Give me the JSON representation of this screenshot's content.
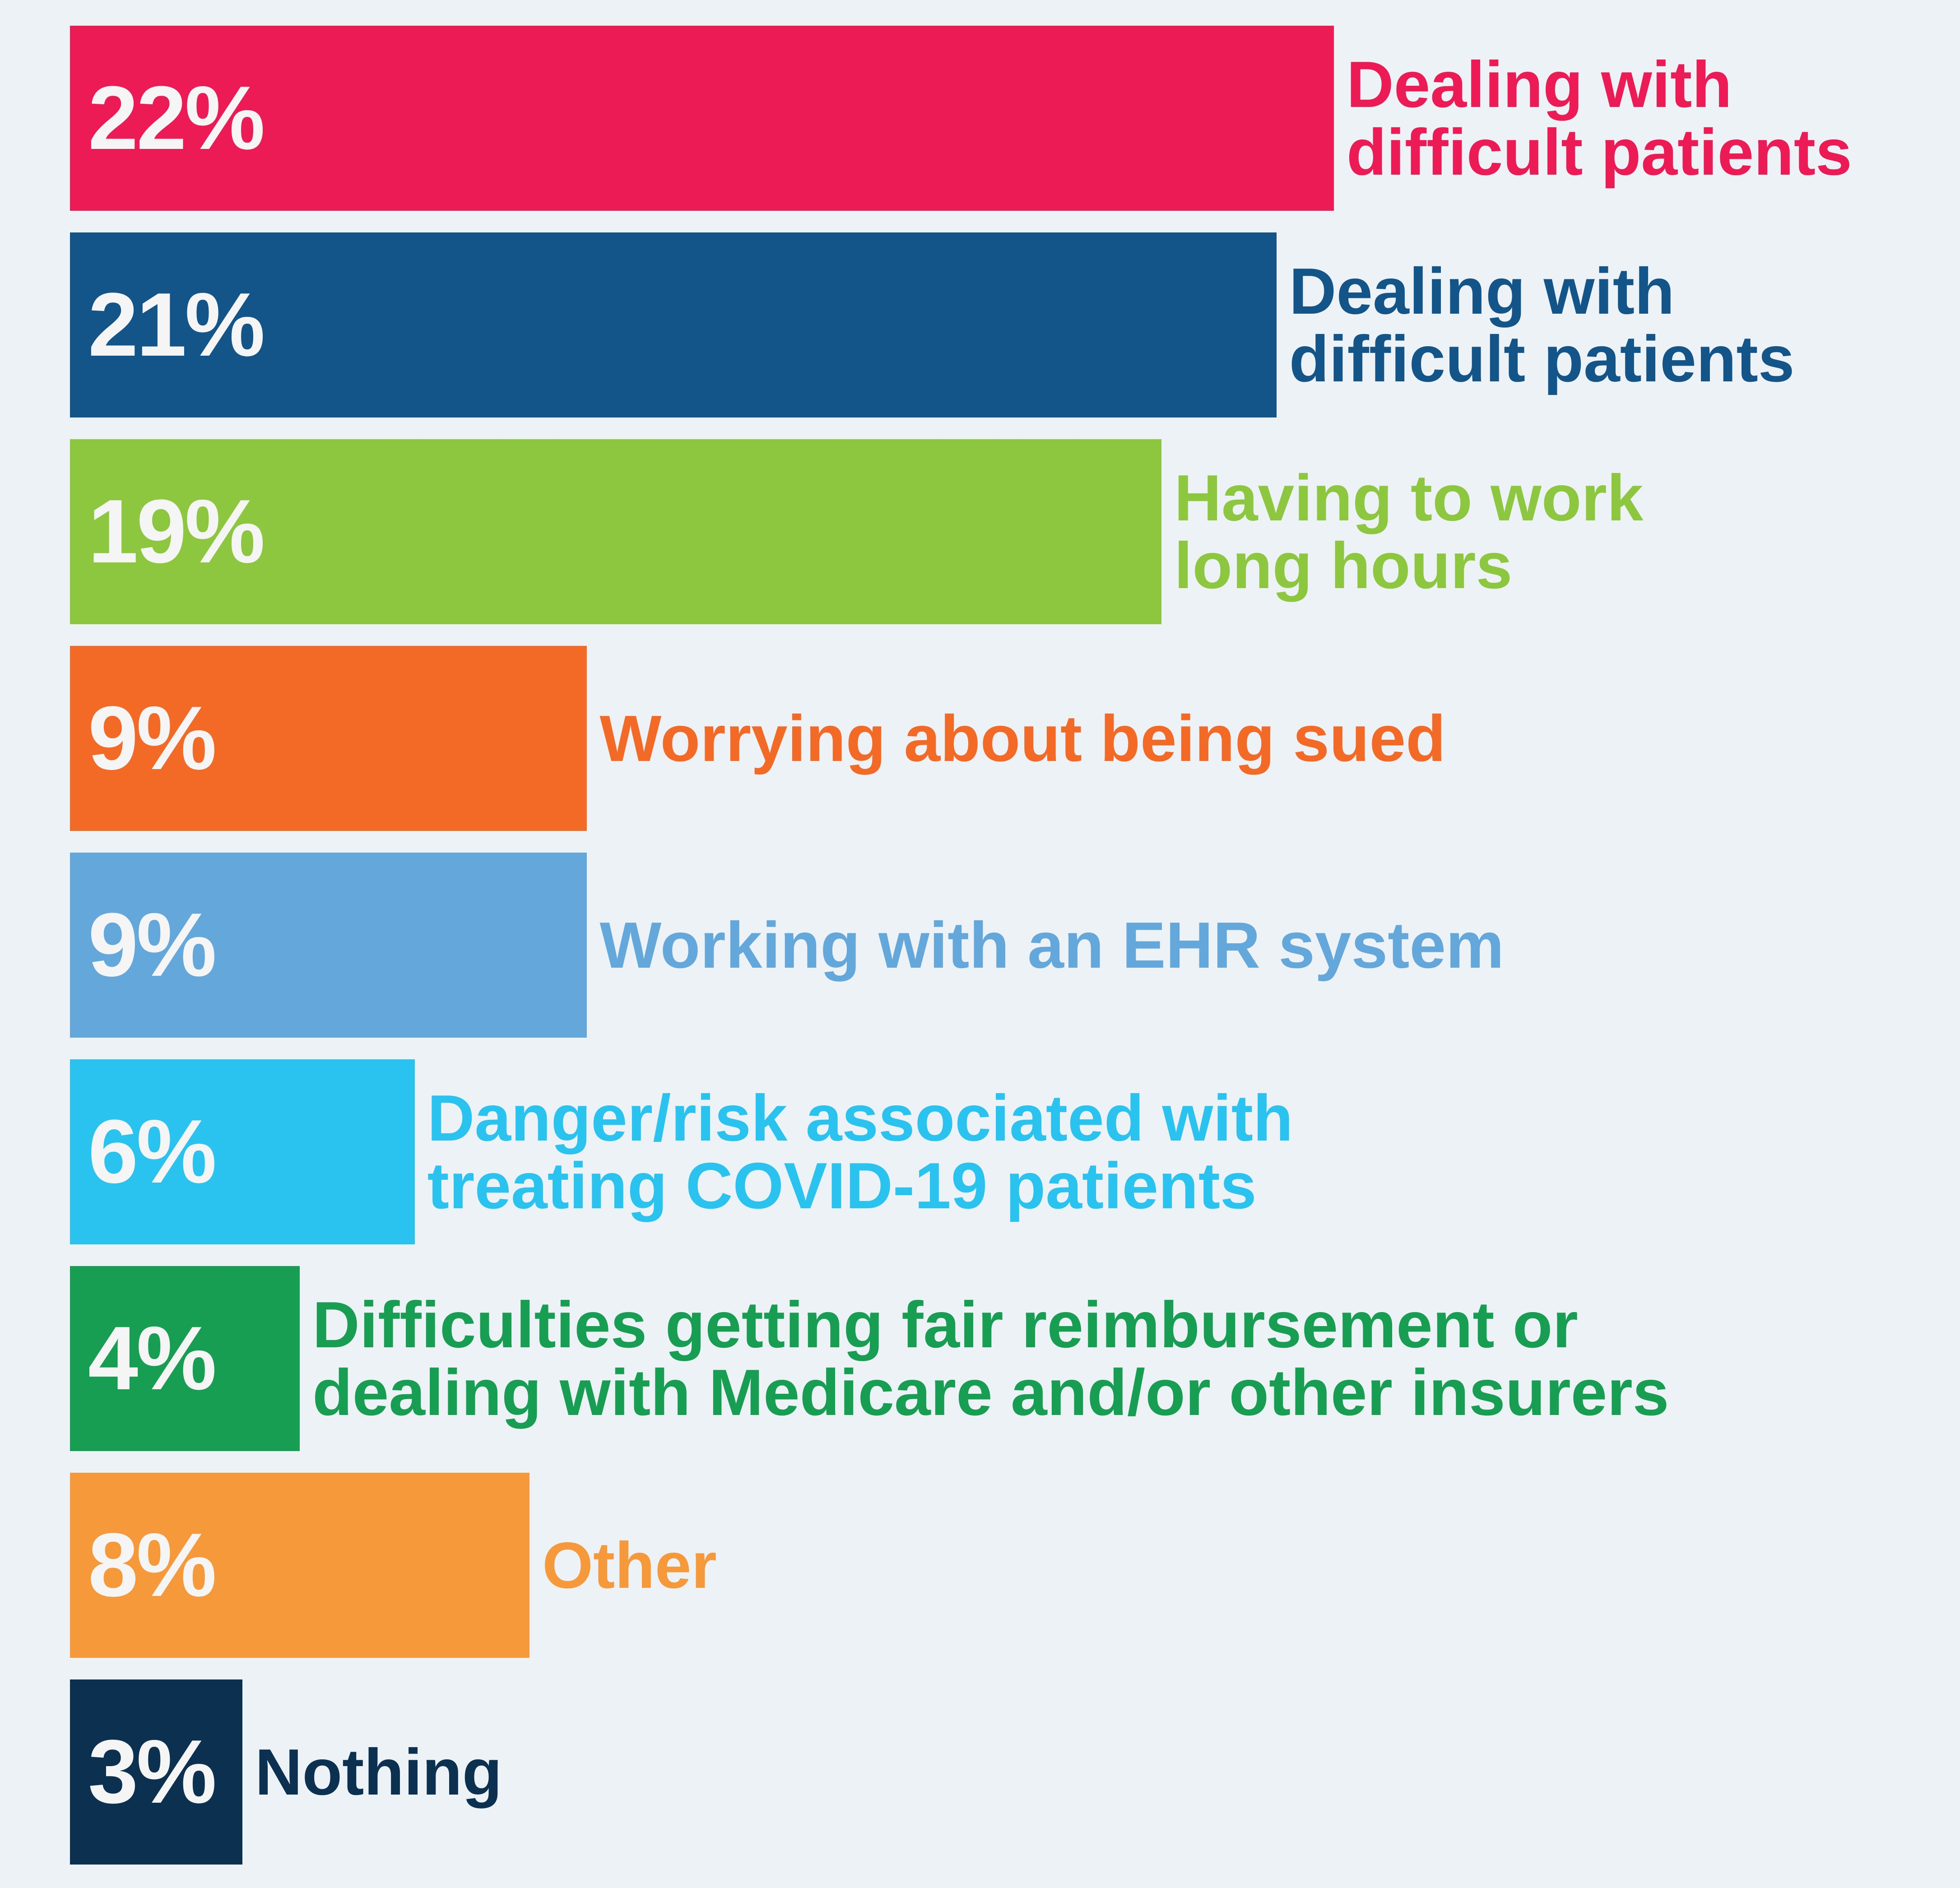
{
  "chart_data": {
    "type": "bar",
    "orientation": "horizontal",
    "xlim": [
      0,
      22
    ],
    "grid": false,
    "legend": "none",
    "bars": [
      {
        "value": 22,
        "value_label": "22%",
        "label_lines": [
          "Dealing with",
          "difficult patients"
        ],
        "color": "#ec1b55",
        "label_color": "#ec1b55"
      },
      {
        "value": 21,
        "value_label": "21%",
        "label_lines": [
          "Dealing with",
          "difficult patients"
        ],
        "color": "#135589",
        "label_color": "#135589"
      },
      {
        "value": 19,
        "value_label": "19%",
        "label_lines": [
          "Having to work",
          "long hours"
        ],
        "color": "#8dc63f",
        "label_color": "#8dc63f"
      },
      {
        "value": 9,
        "value_label": "9%",
        "label_lines": [
          "Worrying about being sued"
        ],
        "color": "#f26a26",
        "label_color": "#f26a26"
      },
      {
        "value": 9,
        "value_label": "9%",
        "label_lines": [
          "Working with an EHR system"
        ],
        "color": "#64a8db",
        "label_color": "#64a8db"
      },
      {
        "value": 6,
        "value_label": "6%",
        "label_lines": [
          "Danger/risk associated with",
          "treating COVID-19 patients"
        ],
        "color": "#2ac2ef",
        "label_color": "#2ac2ef"
      },
      {
        "value": 4,
        "value_label": "4%",
        "label_lines": [
          "Difficulties getting fair reimbursement or",
          "dealing with Medicare and/or other insurers"
        ],
        "color": "#189e52",
        "label_color": "#189e52"
      },
      {
        "value": 8,
        "value_label": "8%",
        "label_lines": [
          "Other"
        ],
        "color": "#f5993b",
        "label_color": "#f5993b"
      },
      {
        "value": 3,
        "value_label": "3%",
        "label_lines": [
          "Nothing"
        ],
        "color": "#0c3050",
        "label_color": "#0c3050"
      }
    ]
  }
}
